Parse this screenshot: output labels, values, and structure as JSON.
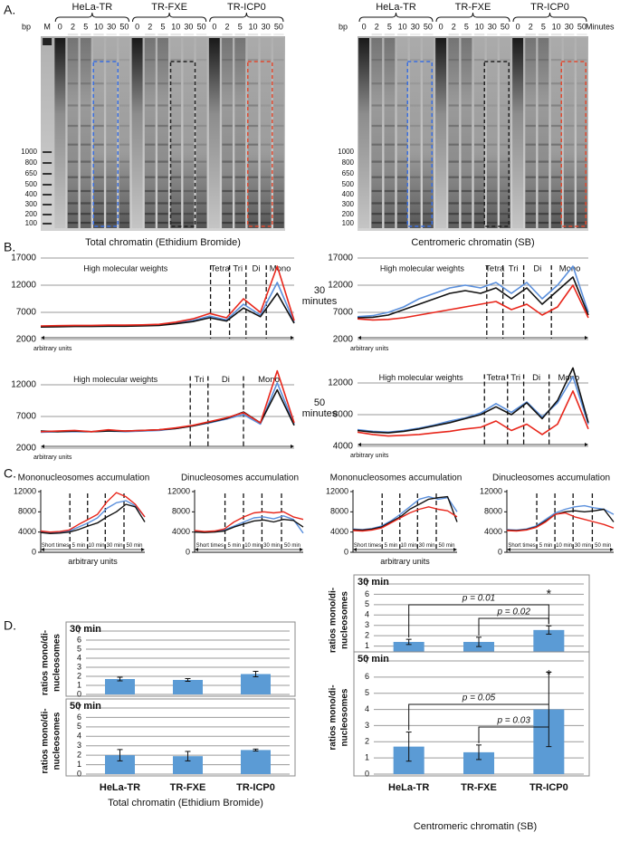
{
  "figure": {
    "A": {
      "letter": "A.",
      "bp_label": "bp",
      "minutes_label": "Minutes",
      "groups": [
        "HeLa-TR",
        "TR-FXE",
        "TR-ICP0"
      ],
      "left_lanes": [
        "M",
        "0",
        "2",
        "5",
        "10",
        "30",
        "50",
        "0",
        "2",
        "5",
        "10",
        "30",
        "50",
        "0",
        "2",
        "5",
        "10",
        "30",
        "50"
      ],
      "right_lanes": [
        "0",
        "2",
        "5",
        "10",
        "30",
        "50",
        "0",
        "2",
        "5",
        "10",
        "30",
        "50",
        "0",
        "2",
        "5",
        "10",
        "30",
        "50"
      ],
      "bp_markers": [
        "1000",
        "800",
        "650",
        "500",
        "400",
        "300",
        "200",
        "100"
      ],
      "captions": [
        "Total chromatin (Ethidium Bromide)",
        "Centromeric chromatin (SB)"
      ]
    },
    "B": {
      "letter": "B.",
      "times": [
        "30 minutes",
        "50 minutes"
      ]
    },
    "C": {
      "letter": "C.",
      "x_label": "arbitrary units"
    },
    "D": {
      "letter": "D.",
      "captions": [
        "Total chromatin (Ethidium Bromide)",
        "Centromeric chromatin (SB)"
      ]
    }
  },
  "chart_data": [
    {
      "type": "line",
      "ylim": [
        2000,
        17000
      ],
      "yticks": [
        2000,
        7000,
        12000,
        17000
      ],
      "grid": true,
      "xlabel": "arbitrary units",
      "regions": [
        "High molecular weights",
        "Tetra",
        "Tri",
        "Di",
        "Mono"
      ],
      "series": [
        {
          "color": "#5a8fdc",
          "values": [
            4400,
            4450,
            4500,
            4500,
            4550,
            4550,
            4600,
            4700,
            5000,
            5500,
            6300,
            5600,
            8500,
            6500,
            12500,
            5200
          ]
        },
        {
          "color": "#111111",
          "values": [
            4300,
            4350,
            4400,
            4400,
            4450,
            4450,
            4500,
            4600,
            4900,
            5300,
            6000,
            5400,
            7800,
            6200,
            10500,
            5000
          ]
        },
        {
          "color": "#e8261b",
          "values": [
            4500,
            4550,
            4600,
            4600,
            4650,
            4650,
            4700,
            4800,
            5200,
            5800,
            6800,
            6000,
            9500,
            7000,
            15500,
            5500
          ]
        }
      ]
    },
    {
      "type": "line",
      "ylim": [
        2000,
        17000
      ],
      "yticks": [
        2000,
        7000,
        12000,
        17000
      ],
      "grid": true,
      "xlabel": "arbitrary units",
      "regions": [
        "High molecular weights",
        "Tetra",
        "Tri",
        "Di",
        "Mono"
      ],
      "series": [
        {
          "color": "#5a8fdc",
          "values": [
            6200,
            6400,
            7000,
            8000,
            9500,
            10500,
            11500,
            12000,
            11500,
            12500,
            10500,
            12500,
            9500,
            12000,
            15500,
            7000
          ]
        },
        {
          "color": "#111111",
          "values": [
            6000,
            6100,
            6500,
            7500,
            8500,
            9500,
            10500,
            11000,
            10500,
            11500,
            9500,
            11500,
            8500,
            11000,
            13500,
            6500
          ]
        },
        {
          "color": "#e8261b",
          "values": [
            5800,
            5600,
            5700,
            6000,
            6500,
            7000,
            7500,
            8000,
            8500,
            9000,
            7500,
            8500,
            6500,
            8000,
            12000,
            6000
          ]
        }
      ]
    },
    {
      "type": "line",
      "ylim": [
        2000,
        14500
      ],
      "yticks": [
        2000,
        7000,
        12000
      ],
      "grid": true,
      "xlabel": "arbitrary units",
      "regions": [
        "High molecular weights",
        "Tri",
        "Di",
        "Mono"
      ],
      "series": [
        {
          "color": "#5a8fdc",
          "values": [
            4500,
            4600,
            4600,
            4600,
            4700,
            4600,
            4700,
            4800,
            5100,
            5500,
            6000,
            6600,
            7300,
            5800,
            12300,
            5800
          ]
        },
        {
          "color": "#111111",
          "values": [
            4700,
            4600,
            4700,
            4600,
            4700,
            4700,
            4800,
            4900,
            5100,
            5500,
            6100,
            6700,
            7700,
            6000,
            11200,
            5600
          ]
        },
        {
          "color": "#e8261b",
          "values": [
            4600,
            4700,
            4800,
            4600,
            4900,
            4700,
            4800,
            4900,
            5200,
            5600,
            6200,
            6800,
            7600,
            6000,
            14200,
            6000
          ]
        }
      ]
    },
    {
      "type": "line",
      "ylim": [
        4000,
        14000
      ],
      "yticks": [
        4000,
        8000,
        12000
      ],
      "grid": true,
      "xlabel": "arbitrary units",
      "regions": [
        "High molecular weights",
        "Tetra",
        "Tri",
        "Di",
        "Mono"
      ],
      "series": [
        {
          "color": "#5a8fdc",
          "values": [
            6100,
            5900,
            5800,
            6000,
            6300,
            6700,
            7200,
            7600,
            8200,
            9400,
            8300,
            9600,
            7700,
            9500,
            12800,
            6800
          ]
        },
        {
          "color": "#111111",
          "values": [
            6000,
            5800,
            5700,
            5900,
            6200,
            6600,
            7000,
            7500,
            8000,
            9000,
            8000,
            9500,
            7500,
            9800,
            13900,
            7000
          ]
        },
        {
          "color": "#e8261b",
          "values": [
            5800,
            5500,
            5300,
            5400,
            5500,
            5700,
            5900,
            6200,
            6400,
            7200,
            6000,
            6800,
            5500,
            6800,
            11000,
            6200
          ]
        }
      ]
    },
    {
      "type": "line",
      "title": "Mononucleosomes accumulation",
      "ylim": [
        0,
        12000
      ],
      "yticks": [
        0,
        4000,
        8000,
        12000
      ],
      "grid": false,
      "regions": [
        "Short times",
        "5 min",
        "10 min",
        "30 min",
        "50 min"
      ],
      "series": [
        {
          "color": "#5a8fdc",
          "values": [
            4100,
            3900,
            4000,
            4200,
            5000,
            5800,
            6800,
            8700,
            9800,
            10200,
            9200,
            7000
          ]
        },
        {
          "color": "#111111",
          "values": [
            3900,
            3700,
            3800,
            4000,
            4500,
            5200,
            5800,
            7000,
            8000,
            9500,
            9000,
            6000
          ]
        },
        {
          "color": "#e8261b",
          "values": [
            4200,
            4000,
            4100,
            4400,
            5500,
            6500,
            7500,
            10000,
            11800,
            11000,
            9500,
            7000
          ]
        }
      ]
    },
    {
      "type": "line",
      "title": "Dinucleosomes accumulation",
      "ylim": [
        0,
        12000
      ],
      "yticks": [
        0,
        4000,
        8000,
        12000
      ],
      "grid": false,
      "regions": [
        "Short times",
        "5 min",
        "10 min",
        "30 min",
        "50 min"
      ],
      "series": [
        {
          "color": "#5a8fdc",
          "values": [
            4200,
            4000,
            4100,
            4400,
            5200,
            6000,
            6800,
            7000,
            6600,
            7200,
            6500,
            3800
          ]
        },
        {
          "color": "#111111",
          "values": [
            4000,
            3900,
            4000,
            4200,
            5000,
            5600,
            6200,
            6400,
            6000,
            6500,
            6300,
            5000
          ]
        },
        {
          "color": "#e8261b",
          "values": [
            4300,
            4100,
            4200,
            4600,
            6000,
            7000,
            7800,
            8000,
            7800,
            8000,
            7000,
            6500
          ]
        }
      ]
    },
    {
      "type": "line",
      "title": "Mononucleosomes accumulation",
      "ylim": [
        0,
        12000
      ],
      "yticks": [
        0,
        4000,
        8000,
        12000
      ],
      "grid": false,
      "regions": [
        "Short times",
        "5 min",
        "10 min",
        "30 min",
        "50 min"
      ],
      "series": [
        {
          "color": "#5a8fdc",
          "values": [
            4600,
            4500,
            4700,
            5200,
            6200,
            7500,
            9000,
            10500,
            11000,
            10500,
            10800,
            8000
          ]
        },
        {
          "color": "#111111",
          "values": [
            4500,
            4400,
            4600,
            5000,
            6000,
            7000,
            8500,
            9500,
            10500,
            10800,
            11000,
            6000
          ]
        },
        {
          "color": "#e8261b",
          "values": [
            4300,
            4200,
            4400,
            4800,
            5800,
            6800,
            7800,
            8500,
            9000,
            8500,
            8200,
            7000
          ]
        }
      ]
    },
    {
      "type": "line",
      "title": "Dinucleosomes accumulation",
      "ylim": [
        0,
        12000
      ],
      "yticks": [
        0,
        4000,
        8000,
        12000
      ],
      "grid": false,
      "regions": [
        "Short times",
        "5 min",
        "10 min",
        "30 min",
        "50 min"
      ],
      "series": [
        {
          "color": "#5a8fdc",
          "values": [
            4500,
            4400,
            4600,
            5200,
            6500,
            7800,
            8500,
            9000,
            9200,
            8800,
            8500,
            7500
          ]
        },
        {
          "color": "#111111",
          "values": [
            4400,
            4300,
            4500,
            5000,
            6200,
            7500,
            8000,
            8200,
            8000,
            8200,
            8500,
            6000
          ]
        },
        {
          "color": "#e8261b",
          "values": [
            4300,
            4200,
            4400,
            4900,
            6000,
            7500,
            7800,
            7000,
            6500,
            6000,
            5500,
            4800
          ]
        }
      ]
    },
    {
      "type": "bar",
      "title": "30 min",
      "ylabel": [
        "ratios mono/di-",
        "nucleosomes"
      ],
      "ylim": [
        0,
        7
      ],
      "yticks": [
        0,
        1,
        2,
        3,
        4,
        5,
        6,
        7
      ],
      "grid": true,
      "color": "#5b9bd5",
      "values": [
        1.7,
        1.6,
        2.25
      ],
      "errors": [
        0.2,
        0.15,
        0.3
      ]
    },
    {
      "type": "bar",
      "title": "50 min",
      "ylabel": [
        "ratios mono/di-",
        "nucleosomes"
      ],
      "ylim": [
        0,
        7
      ],
      "yticks": [
        0,
        1,
        2,
        3,
        4,
        5,
        6,
        7
      ],
      "grid": true,
      "color": "#5b9bd5",
      "categories": [
        "HeLa-TR",
        "TR-FXE",
        "TR-ICP0"
      ],
      "values": [
        2.0,
        1.9,
        2.55
      ],
      "errors": [
        0.6,
        0.5,
        0.1
      ]
    },
    {
      "type": "bar",
      "title": "30 min",
      "ylabel": [
        "ratios mono/di-",
        "nucleosomes"
      ],
      "ylim": [
        0,
        7
      ],
      "yticks": [
        0,
        1,
        2,
        3,
        4,
        5,
        6,
        7
      ],
      "grid": true,
      "color": "#5b9bd5",
      "values": [
        1.4,
        1.4,
        2.55
      ],
      "errors": [
        0.25,
        0.45,
        0.4
      ],
      "annotations": [
        "p = 0.01",
        "p = 0.02",
        "*"
      ]
    },
    {
      "type": "bar",
      "title": "50 min",
      "ylabel": [
        "ratios mono/di-",
        "nucleosomes"
      ],
      "ylim": [
        0,
        7
      ],
      "yticks": [
        0,
        1,
        2,
        3,
        4,
        5,
        6,
        7
      ],
      "grid": true,
      "color": "#5b9bd5",
      "categories": [
        "HeLa-TR",
        "TR-FXE",
        "TR-ICP0"
      ],
      "values": [
        1.7,
        1.35,
        4.0
      ],
      "errors": [
        0.9,
        0.45,
        2.3
      ],
      "annotations": [
        "p = 0.05",
        "p = 0.03",
        "*"
      ]
    }
  ]
}
